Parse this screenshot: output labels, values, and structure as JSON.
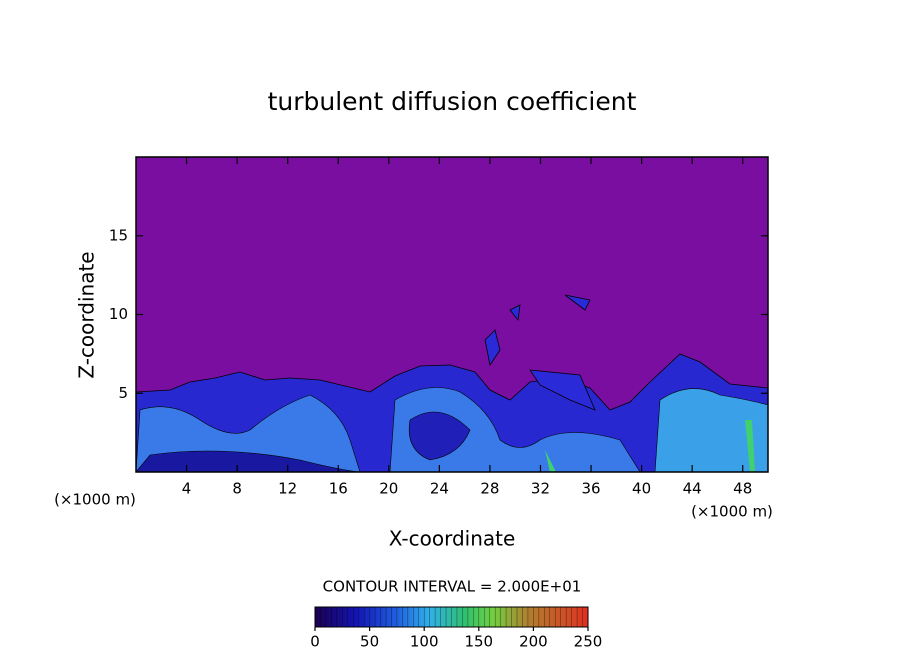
{
  "chart_data": {
    "type": "contour",
    "title": "turbulent diffusion coefficient",
    "x_label": "X-coordinate",
    "y_label": "Z-coordinate",
    "x_unit": "(×1000 m)",
    "y_unit": "(×1000 m)",
    "annotation": "CONTOUR INTERVAL = 2.000E+01",
    "xlim": [
      0,
      50
    ],
    "xticks": [
      4,
      8,
      12,
      16,
      20,
      24,
      28,
      32,
      36,
      40,
      44,
      48
    ],
    "ylim": [
      0,
      20
    ],
    "yticks": [
      5,
      10,
      15
    ],
    "colorbar_lim": [
      0,
      250
    ],
    "colorbar_ticks": [
      0,
      50,
      100,
      150,
      200,
      250
    ]
  }
}
